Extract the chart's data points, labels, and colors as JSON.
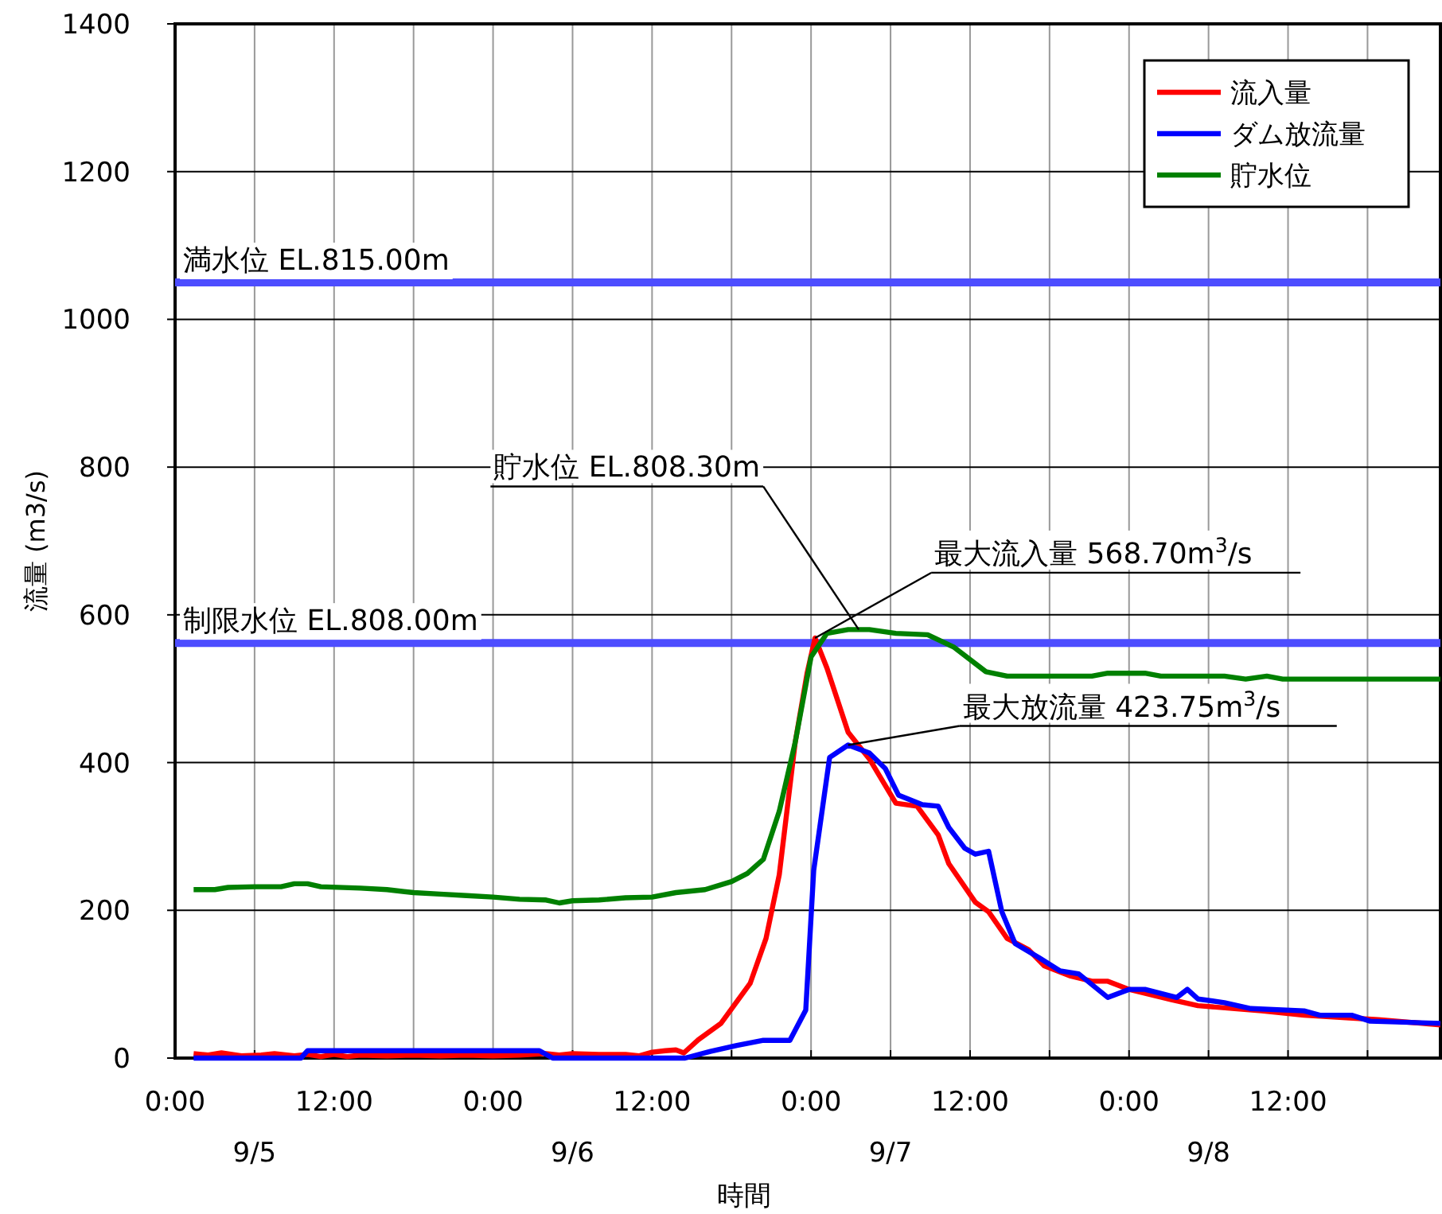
{
  "chart_data": {
    "type": "line",
    "xlabel": "時間",
    "ylabel": "流量 (m3/s)",
    "xlim": [
      "--09-05T00:00",
      "--09-08T23:30"
    ],
    "ylim": [
      0,
      1400
    ],
    "xticks": [
      {
        "value": "--09-05T00:00",
        "label": "0:00"
      },
      {
        "value": "--09-05T06:00",
        "label": null
      },
      {
        "value": "--09-05T12:00",
        "label": "12:00"
      },
      {
        "value": "--09-05T18:00",
        "label": null
      },
      {
        "value": "--09-06T00:00",
        "label": "0:00"
      },
      {
        "value": "--09-06T06:00",
        "label": null
      },
      {
        "value": "--09-06T12:00",
        "label": "12:00"
      },
      {
        "value": "--09-06T18:00",
        "label": null
      },
      {
        "value": "--09-07T00:00",
        "label": "0:00"
      },
      {
        "value": "--09-07T06:00",
        "label": null
      },
      {
        "value": "--09-07T12:00",
        "label": "12:00"
      },
      {
        "value": "--09-07T18:00",
        "label": null
      },
      {
        "value": "--09-08T00:00",
        "label": "0:00"
      },
      {
        "value": "--09-08T06:00",
        "label": null
      },
      {
        "value": "--09-08T12:00",
        "label": "12:00"
      },
      {
        "value": "--09-08T18:00",
        "label": null
      }
    ],
    "yticks": [
      0,
      200,
      400,
      600,
      800,
      1000,
      1200,
      1400
    ],
    "grid": true,
    "legend": "top right",
    "marker": "none",
    "line_style": "solid",
    "series": [
      {
        "name": "流入量",
        "color": "#ff0000",
        "x": [
          "--09-05T01:24",
          "--09-05T02:30",
          "--09-05T03:30",
          "--09-05T05:00",
          "--09-05T06:30",
          "--09-05T07:30",
          "--09-05T09:00",
          "--09-05T10:00",
          "--09-05T11:00",
          "--09-05T12:00",
          "--09-05T13:00",
          "--09-05T14:00",
          "--09-05T16:00",
          "--09-05T18:00",
          "--09-05T20:00",
          "--09-05T22:00",
          "--09-06T00:00",
          "--09-06T02:00",
          "--09-06T04:00",
          "--09-06T05:00",
          "--09-06T06:00",
          "--09-06T08:00",
          "--09-06T10:00",
          "--09-06T11:00",
          "--09-06T12:00",
          "--09-06T13:00",
          "--09-06T13:48",
          "--09-06T14:24",
          "--09-06T15:30",
          "--09-06T17:12",
          "--09-06T19:24",
          "--09-06T20:36",
          "--09-06T21:36",
          "--09-06T22:48",
          "--09-06T23:42",
          "--09-07T00:18",
          "--09-07T01:12",
          "--09-07T02:48",
          "--09-07T04:24",
          "--09-07T06:24",
          "--09-07T08:00",
          "--09-07T09:36",
          "--09-07T10:24",
          "--09-07T12:24",
          "--09-07T13:24",
          "--09-07T14:48",
          "--09-07T16:24",
          "--09-07T17:36",
          "--09-07T19:36",
          "--09-07T21:12",
          "--09-07T22:24",
          "--09-08T00:00",
          "--09-08T03:12",
          "--09-08T05:12",
          "--09-08T10:00",
          "--09-08T13:12",
          "--09-08T18:48",
          "--09-08T23:30"
        ],
        "values": [
          6,
          4,
          7,
          3,
          4,
          6,
          3,
          5,
          2,
          5,
          2,
          4,
          3,
          4,
          3,
          4,
          3,
          4,
          6,
          4,
          6,
          5,
          5,
          3,
          8,
          10,
          11,
          7,
          25,
          47,
          101,
          162,
          248,
          427,
          521,
          568.7,
          528,
          441,
          405,
          345,
          341,
          302,
          263,
          211,
          198,
          162,
          147,
          125,
          111,
          104,
          104,
          93,
          79,
          71,
          64,
          58,
          52,
          45
        ]
      },
      {
        "name": "ダム放流量",
        "color": "#0000ff",
        "x": [
          "--09-05T01:24",
          "--09-05T09:30",
          "--09-05T10:00",
          "--09-06T03:30",
          "--09-06T04:30",
          "--09-06T14:30",
          "--09-06T16:24",
          "--09-06T18:24",
          "--09-06T20:24",
          "--09-06T22:24",
          "--09-06T23:36",
          "--09-07T00:12",
          "--09-07T01:24",
          "--09-07T02:48",
          "--09-07T04:24",
          "--09-07T05:36",
          "--09-07T06:36",
          "--09-07T08:24",
          "--09-07T09:36",
          "--09-07T10:24",
          "--09-07T11:36",
          "--09-07T12:24",
          "--09-07T13:24",
          "--09-07T14:24",
          "--09-07T15:24",
          "--09-07T17:12",
          "--09-07T18:48",
          "--09-07T20:12",
          "--09-07T22:24",
          "--09-08T00:00",
          "--09-08T01:12",
          "--09-08T03:36",
          "--09-08T04:24",
          "--09-08T05:12",
          "--09-08T07:12",
          "--09-08T09:12",
          "--09-08T13:12",
          "--09-08T14:24",
          "--09-08T16:48",
          "--09-08T18:12",
          "--09-08T23:30"
        ],
        "values": [
          0,
          0,
          10,
          10,
          0,
          0,
          9,
          17,
          24,
          24,
          65,
          254,
          407,
          423.75,
          413,
          392,
          356,
          343,
          341,
          312,
          284,
          276,
          280,
          198,
          155,
          136,
          118,
          114,
          82,
          93,
          93,
          82,
          93,
          80,
          75,
          67,
          64,
          58,
          58,
          50,
          47
        ]
      },
      {
        "name": "貯水位",
        "color": "#008000",
        "x": [
          "--09-05T01:24",
          "--09-05T03:00",
          "--09-05T04:00",
          "--09-05T06:00",
          "--09-05T08:00",
          "--09-05T09:00",
          "--09-05T10:00",
          "--09-05T11:00",
          "--09-05T14:00",
          "--09-05T16:00",
          "--09-05T18:00",
          "--09-05T20:00",
          "--09-05T22:00",
          "--09-06T00:00",
          "--09-06T02:00",
          "--09-06T04:00",
          "--09-06T05:00",
          "--09-06T06:00",
          "--09-06T08:00",
          "--09-06T10:00",
          "--09-06T12:00",
          "--09-06T13:48",
          "--09-06T16:00",
          "--09-06T18:00",
          "--09-06T19:12",
          "--09-06T20:24",
          "--09-06T21:36",
          "--09-06T22:48",
          "--09-07T00:00",
          "--09-07T01:12",
          "--09-07T02:48",
          "--09-07T04:24",
          "--09-07T06:24",
          "--09-07T08:48",
          "--09-07T10:48",
          "--09-07T13:12",
          "--09-07T14:48",
          "--09-07T21:12",
          "--09-07T22:24",
          "--09-08T01:12",
          "--09-08T02:24",
          "--09-08T07:12",
          "--09-08T08:48",
          "--09-08T10:24",
          "--09-08T11:36",
          "--09-08T23:30"
        ],
        "values": [
          228,
          228,
          231,
          232,
          232,
          236,
          236,
          232,
          230,
          228,
          224,
          222,
          220,
          218,
          215,
          214,
          210,
          213,
          214,
          217,
          218,
          224,
          228,
          239,
          250,
          269,
          334,
          427,
          543,
          575,
          580,
          580,
          575,
          573,
          556,
          523,
          517,
          517,
          521,
          521,
          517,
          517,
          513,
          517,
          513,
          513
        ]
      }
    ],
    "ref_lines": [
      {
        "axis": "y",
        "value": 1050,
        "label": "満水位 EL.815.00m",
        "color": "#4d4dff"
      },
      {
        "axis": "y",
        "value": 562,
        "label": "制限水位 EL.808.00m",
        "color": "#4d4dff"
      }
    ],
    "annotations": [
      {
        "text": "貯水位 EL.808.30m",
        "x": "--09-07T03:36",
        "y": 580
      },
      {
        "text": "最大流入量 568.70m$^{3}$/s",
        "x": "--09-07T00:18",
        "y": 568.7
      },
      {
        "text": "最大放流量 423.75m$^{3}$/s",
        "x": "--09-07T02:48",
        "y": 423.75
      },
      "9/5",
      "9/6",
      "9/7",
      "9/8"
    ]
  }
}
